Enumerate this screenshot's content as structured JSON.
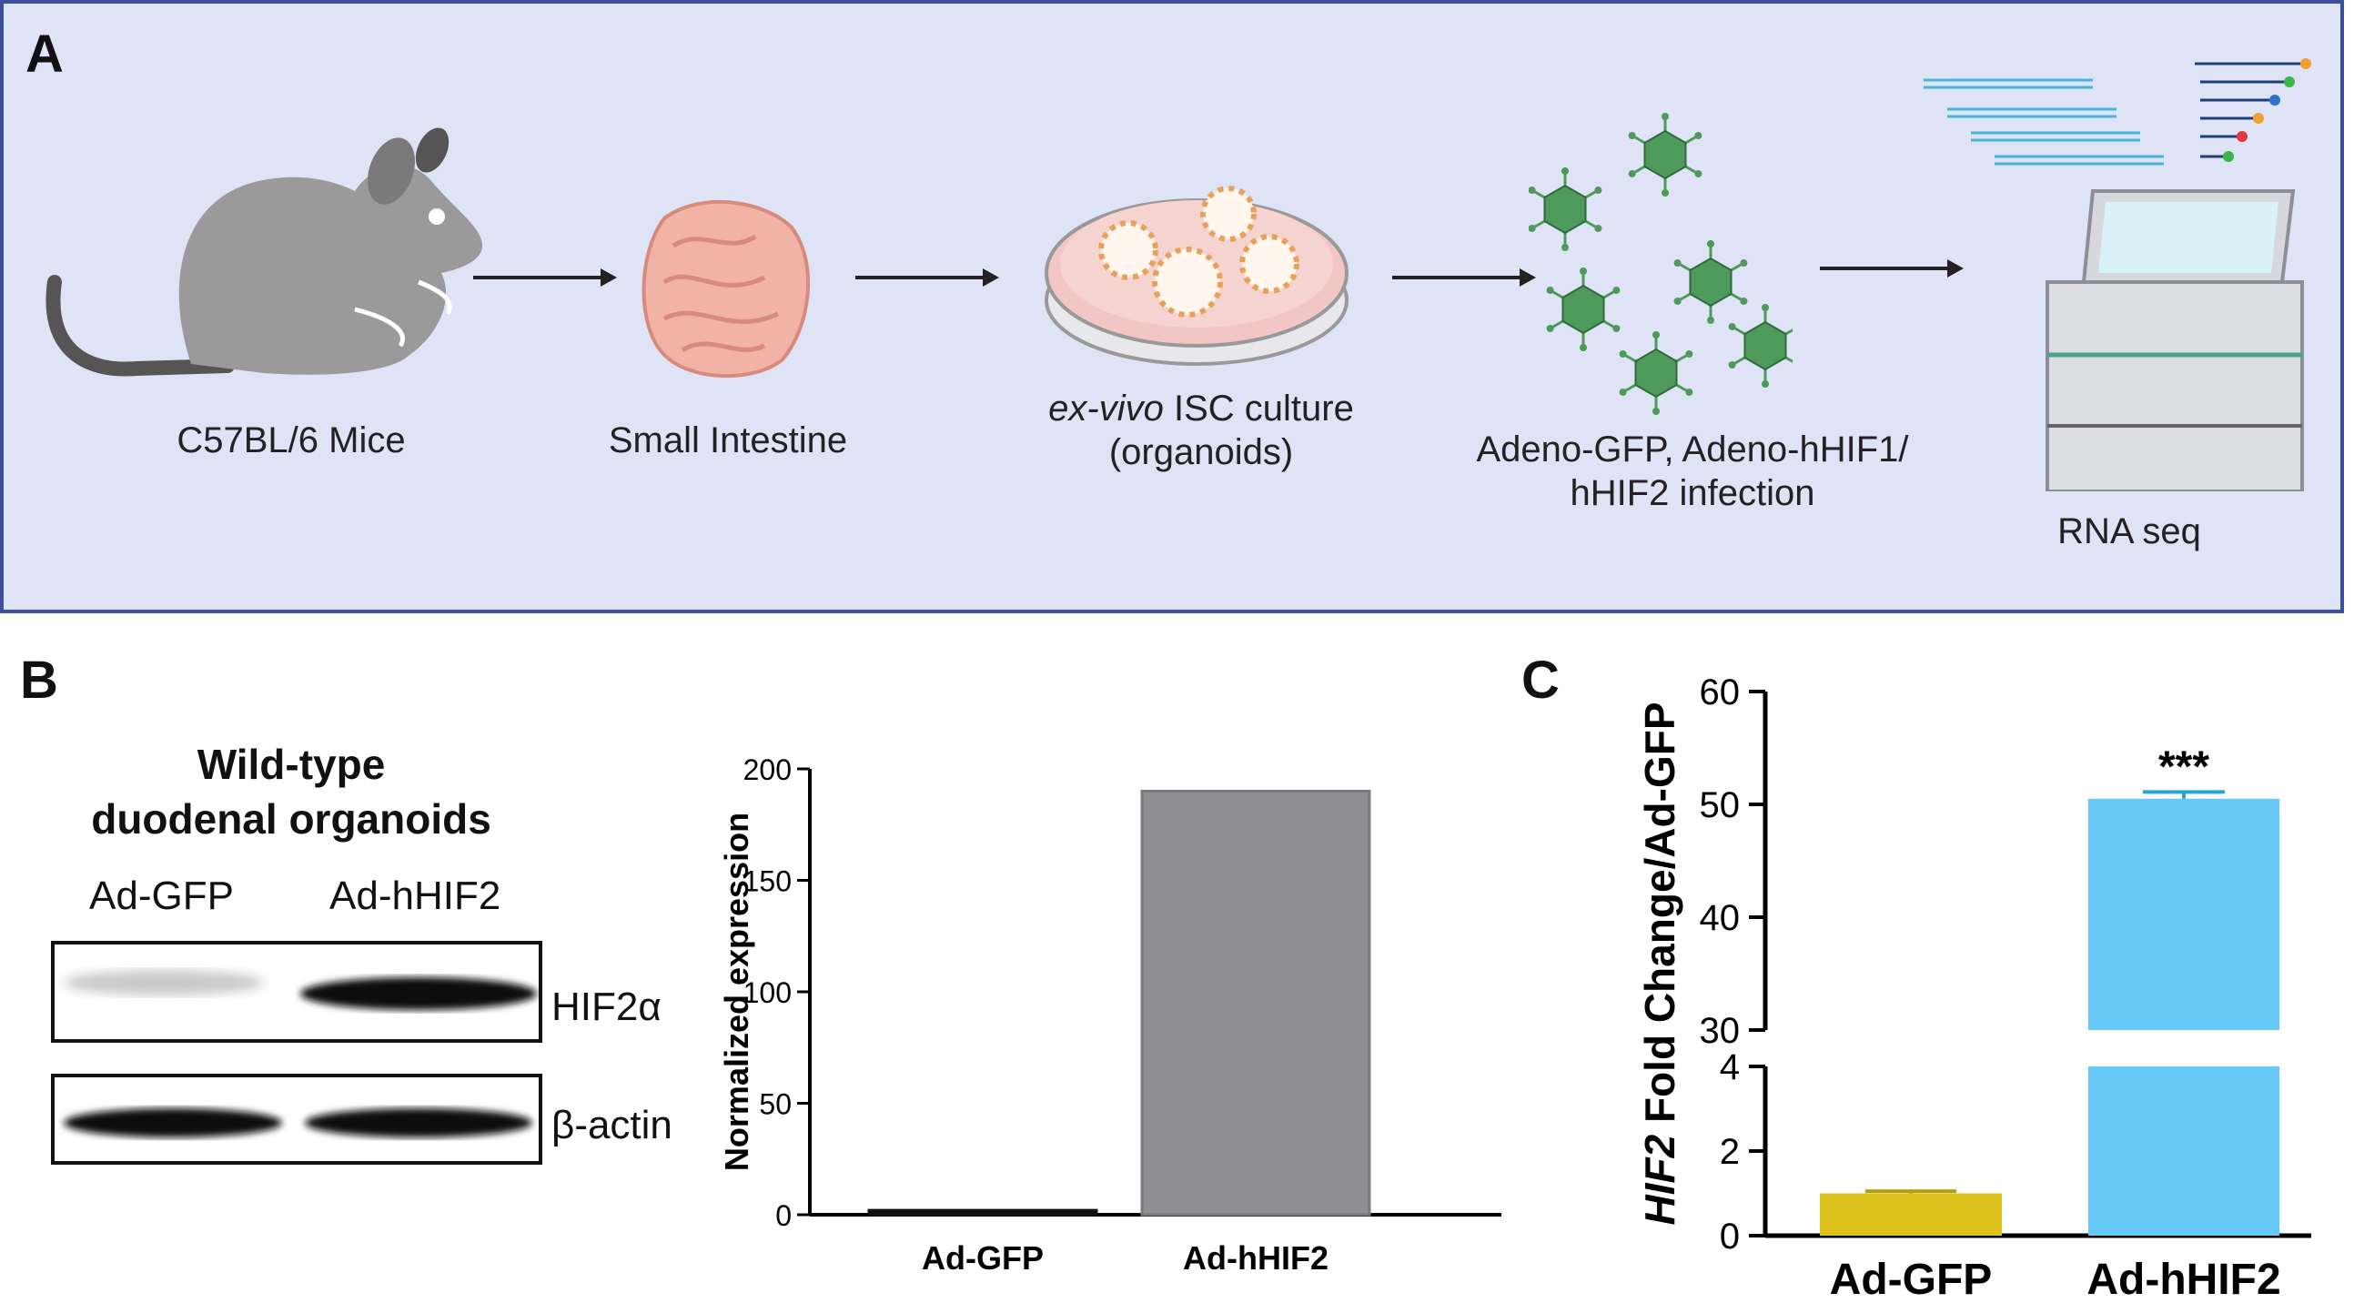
{
  "panel_a": {
    "letter": "A",
    "stages": [
      {
        "id": "mice",
        "label": "C57BL/6 Mice"
      },
      {
        "id": "intestine",
        "label": "Small Intestine"
      },
      {
        "id": "culture",
        "label_italic": "ex-vivo",
        "label_rest": " ISC culture",
        "label_line2": "(organoids)"
      },
      {
        "id": "infection",
        "label_line1": "Adeno-GFP, Adeno-hHIF1/",
        "label_line2": "hHIF2 infection"
      },
      {
        "id": "rnaseq",
        "label": "RNA seq"
      }
    ]
  },
  "panel_b": {
    "letter": "B",
    "blot": {
      "title_line1": "Wild-type",
      "title_line2": "duodenal organoids",
      "lanes": [
        "Ad-GFP",
        "Ad-hHIF2"
      ],
      "bands": [
        "HIF2α",
        "β-actin"
      ]
    }
  },
  "panel_c": {
    "letter": "C"
  },
  "colors": {
    "panel_a_bg": "#dfe3f6",
    "panel_a_border": "#3c4f9a",
    "bar_gray": "#8e8e93",
    "bar_yellow": "#ddc21c",
    "bar_blue": "#66c9f6",
    "mouse": "#9a9a9a",
    "intestine": "#f0b3a6",
    "virus": "#4e9a5a"
  },
  "chart_data": [
    {
      "type": "bar",
      "categories": [
        "Ad-GFP",
        "Ad-hHIF2"
      ],
      "values": [
        2,
        190
      ],
      "ylabel": "Normalized expression",
      "ylim": [
        0,
        200
      ],
      "yticks": [
        "0",
        "50",
        "100",
        "150",
        "200"
      ],
      "grid": false
    },
    {
      "type": "bar",
      "categories": [
        "Ad-GFP",
        "Ad-hHIF2"
      ],
      "values": [
        1.0,
        50.5
      ],
      "errors": [
        0.05,
        0.6
      ],
      "ylabel_italic": "HIF2",
      "ylabel_rest": " Fold Change/Ad-GFP",
      "ylim": [
        0,
        60
      ],
      "axis_break": [
        4,
        30
      ],
      "yticks_lower": [
        "0",
        "2",
        "4"
      ],
      "yticks_upper": [
        "30",
        "40",
        "50",
        "60"
      ],
      "annotation": "***",
      "grid": false
    }
  ]
}
